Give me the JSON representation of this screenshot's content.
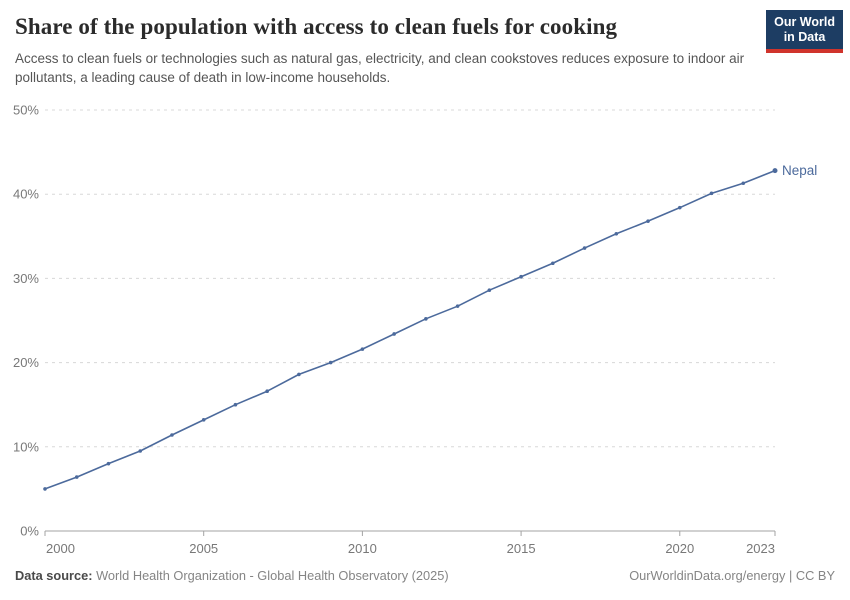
{
  "header": {
    "title": "Share of the population with access to clean fuels for cooking",
    "subtitle": "Access to clean fuels or technologies such as natural gas, electricity, and clean cookstoves reduces exposure to indoor air pollutants, a leading cause of death in low-income households."
  },
  "logo": {
    "line1": "Our World",
    "line2": "in Data",
    "bg_color": "#1d3d63",
    "accent_color": "#d0342c"
  },
  "chart_data": {
    "type": "line",
    "title": "Share of the population with access to clean fuels for cooking",
    "xlabel": "",
    "ylabel": "",
    "xlim": [
      2000,
      2023
    ],
    "ylim": [
      0,
      50
    ],
    "grid": "horizontal-dashed",
    "legend_position": "end-of-line",
    "x_ticks": [
      2000,
      2005,
      2010,
      2015,
      2020,
      2023
    ],
    "y_ticks": [
      0,
      10,
      20,
      30,
      40,
      50
    ],
    "y_tick_suffix": "%",
    "series": [
      {
        "name": "Nepal",
        "color": "#4C6A9C",
        "x": [
          2000,
          2001,
          2002,
          2003,
          2004,
          2005,
          2006,
          2007,
          2008,
          2009,
          2010,
          2011,
          2012,
          2013,
          2014,
          2015,
          2016,
          2017,
          2018,
          2019,
          2020,
          2021,
          2022,
          2023
        ],
        "values": [
          5.0,
          6.4,
          8.0,
          9.5,
          11.4,
          13.2,
          15.0,
          16.6,
          18.6,
          20.0,
          21.6,
          23.4,
          25.2,
          26.7,
          28.6,
          30.2,
          31.8,
          33.6,
          35.3,
          36.8,
          38.4,
          40.1,
          41.3,
          42.8
        ]
      }
    ]
  },
  "footer": {
    "source_label": "Data source:",
    "source_text": " World Health Organization - Global Health Observatory (2025)",
    "credit": "OurWorldinData.org/energy | CC BY"
  }
}
